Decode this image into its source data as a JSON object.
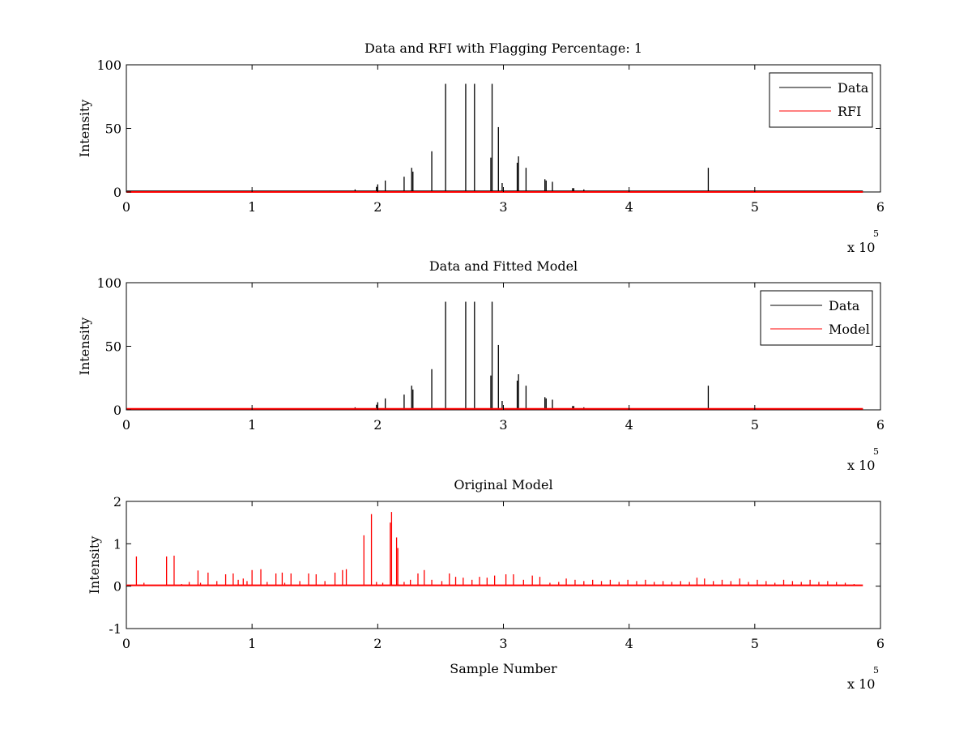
{
  "chart_data": [
    {
      "type": "line",
      "title": "Data and RFI with Flagging Percentage: 1",
      "xlabel": "",
      "ylabel": "Intensity",
      "xlim": [
        0,
        600000
      ],
      "ylim": [
        0,
        100
      ],
      "x_ticks": [
        0,
        1,
        2,
        3,
        4,
        5,
        6
      ],
      "y_ticks": [
        0,
        50,
        100
      ],
      "x_multiplier_base": "x 10",
      "x_multiplier_exp": "5",
      "grid": false,
      "legend_position": "top-right",
      "series": [
        {
          "name": "Data",
          "color": "#000000",
          "baseline": 0.5,
          "x": [
            0,
            100000,
            115000,
            162000,
            182000,
            199000,
            200000,
            206000,
            221000,
            227000,
            228000,
            243000,
            254000,
            270000,
            277000,
            290000,
            291000,
            296000,
            299000,
            311000,
            312000,
            318000,
            333000,
            334000,
            339000,
            355000,
            356000,
            364000,
            463000,
            586000
          ],
          "y": [
            0.5,
            1,
            1,
            1,
            2,
            4,
            6,
            9,
            12,
            19,
            16,
            32,
            85,
            85,
            85,
            27,
            85,
            51,
            7,
            23,
            28,
            19,
            10,
            9,
            8,
            3,
            3,
            2,
            19,
            0.5
          ]
        },
        {
          "name": "RFI",
          "color": "#ff0000",
          "baseline": 0,
          "x": [],
          "y": []
        }
      ]
    },
    {
      "type": "line",
      "title": "Data and Fitted Model",
      "xlabel": "",
      "ylabel": "Intensity",
      "xlim": [
        0,
        600000
      ],
      "ylim": [
        0,
        100
      ],
      "x_ticks": [
        0,
        1,
        2,
        3,
        4,
        5,
        6
      ],
      "y_ticks": [
        0,
        50,
        100
      ],
      "x_multiplier_base": "x 10",
      "x_multiplier_exp": "5",
      "grid": false,
      "legend_position": "top-right",
      "series": [
        {
          "name": "Data",
          "color": "#000000",
          "baseline": 0.5,
          "x": [
            0,
            100000,
            115000,
            162000,
            182000,
            199000,
            200000,
            206000,
            221000,
            227000,
            228000,
            243000,
            254000,
            270000,
            277000,
            290000,
            291000,
            296000,
            299000,
            311000,
            312000,
            318000,
            333000,
            334000,
            339000,
            355000,
            356000,
            364000,
            463000,
            586000
          ],
          "y": [
            0.5,
            1,
            1,
            1,
            2,
            4,
            6,
            9,
            12,
            19,
            16,
            32,
            85,
            85,
            85,
            27,
            85,
            51,
            7,
            23,
            28,
            19,
            10,
            9,
            8,
            3,
            3,
            2,
            19,
            0.5
          ]
        },
        {
          "name": "Model",
          "color": "#ff0000",
          "baseline": 0.8,
          "x": [],
          "y": []
        }
      ]
    },
    {
      "type": "line",
      "title": "Original Model",
      "xlabel": "Sample Number",
      "ylabel": "Intensity",
      "xlim": [
        0,
        600000
      ],
      "ylim": [
        -1,
        2
      ],
      "x_ticks": [
        0,
        1,
        2,
        3,
        4,
        5,
        6
      ],
      "y_ticks": [
        -1,
        0,
        1,
        2
      ],
      "x_multiplier_base": "x 10",
      "x_multiplier_exp": "5",
      "grid": false,
      "legend_position": "none",
      "series": [
        {
          "name": "",
          "color": "#ff0000",
          "baseline": 0.02,
          "x": [
            8000,
            14000,
            32000,
            38000,
            44000,
            50000,
            57000,
            59000,
            65000,
            72000,
            79000,
            85000,
            89000,
            93000,
            96000,
            100000,
            107000,
            112000,
            119000,
            124000,
            126000,
            131000,
            138000,
            145000,
            151000,
            158000,
            166000,
            172000,
            175000,
            189000,
            195000,
            199000,
            204000,
            210000,
            211000,
            215000,
            216000,
            221000,
            226000,
            232000,
            237000,
            243000,
            251000,
            257000,
            262000,
            268000,
            275000,
            281000,
            287000,
            293000,
            302000,
            308000,
            316000,
            323000,
            329000,
            337000,
            344000,
            350000,
            357000,
            364000,
            371000,
            378000,
            385000,
            392000,
            399000,
            406000,
            413000,
            420000,
            427000,
            434000,
            441000,
            448000,
            454000,
            460000,
            467000,
            474000,
            481000,
            488000,
            495000,
            502000,
            509000,
            516000,
            523000,
            530000,
            537000,
            544000,
            551000,
            558000,
            565000,
            572000,
            579000
          ],
          "y": [
            0.7,
            0.08,
            0.7,
            0.72,
            0.05,
            0.1,
            0.37,
            0.08,
            0.32,
            0.12,
            0.28,
            0.3,
            0.15,
            0.18,
            0.12,
            0.38,
            0.4,
            0.1,
            0.3,
            0.32,
            0.08,
            0.3,
            0.12,
            0.3,
            0.28,
            0.12,
            0.32,
            0.38,
            0.4,
            1.2,
            1.7,
            0.1,
            0.08,
            1.5,
            1.75,
            1.15,
            0.9,
            0.1,
            0.15,
            0.3,
            0.38,
            0.15,
            0.12,
            0.3,
            0.22,
            0.2,
            0.15,
            0.22,
            0.2,
            0.25,
            0.28,
            0.28,
            0.15,
            0.25,
            0.22,
            0.08,
            0.1,
            0.18,
            0.15,
            0.12,
            0.15,
            0.12,
            0.15,
            0.1,
            0.15,
            0.12,
            0.15,
            0.1,
            0.12,
            0.1,
            0.12,
            0.1,
            0.2,
            0.18,
            0.12,
            0.15,
            0.12,
            0.18,
            0.1,
            0.15,
            0.12,
            0.08,
            0.15,
            0.12,
            0.1,
            0.15,
            0.1,
            0.12,
            0.1,
            0.08,
            0.05
          ]
        }
      ]
    }
  ]
}
